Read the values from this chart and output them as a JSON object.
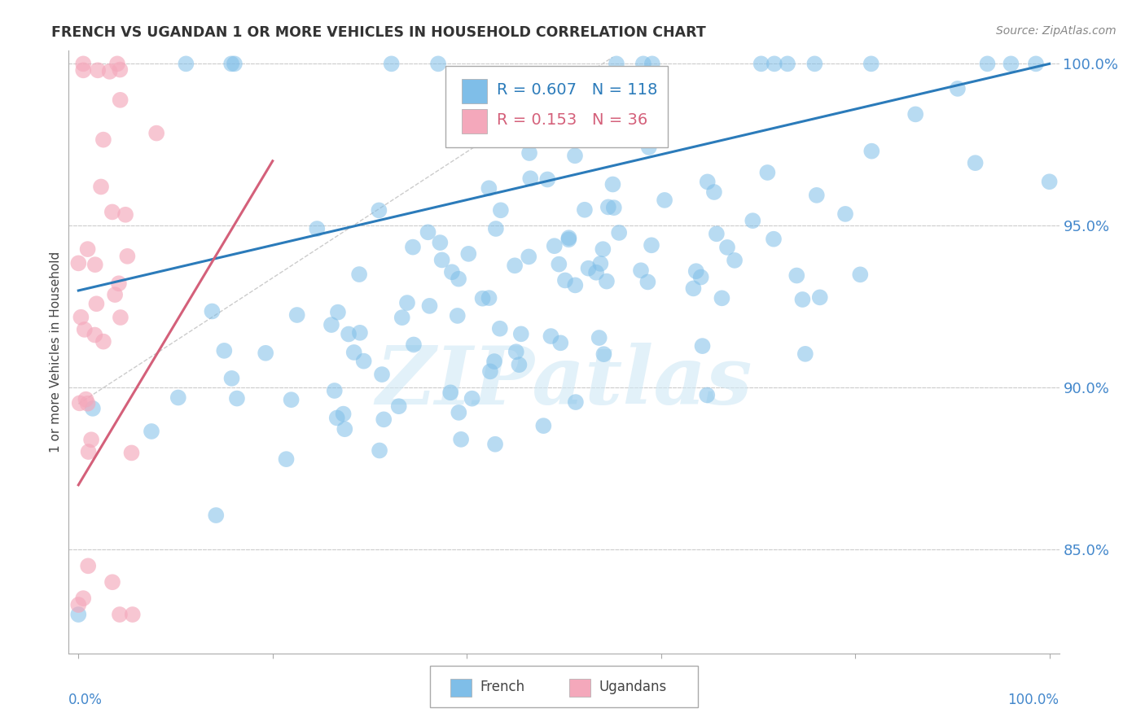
{
  "title": "FRENCH VS UGANDAN 1 OR MORE VEHICLES IN HOUSEHOLD CORRELATION CHART",
  "source": "Source: ZipAtlas.com",
  "ylabel": "1 or more Vehicles in Household",
  "watermark": "ZIPatlas",
  "french_R": 0.607,
  "french_N": 118,
  "ugandan_R": 0.153,
  "ugandan_N": 36,
  "ylim": [
    0.818,
    1.004
  ],
  "xlim": [
    -0.01,
    1.01
  ],
  "french_color": "#7fbee8",
  "ugandan_color": "#f4a8bb",
  "french_line_color": "#2b7bba",
  "ugandan_line_color": "#d4607a",
  "dashed_line_color": "#cccccc",
  "bg_color": "#ffffff",
  "grid_color": "#cccccc",
  "title_color": "#333333",
  "axis_label_color": "#4488cc",
  "legend_border_color": "#aaaaaa",
  "source_color": "#888888"
}
